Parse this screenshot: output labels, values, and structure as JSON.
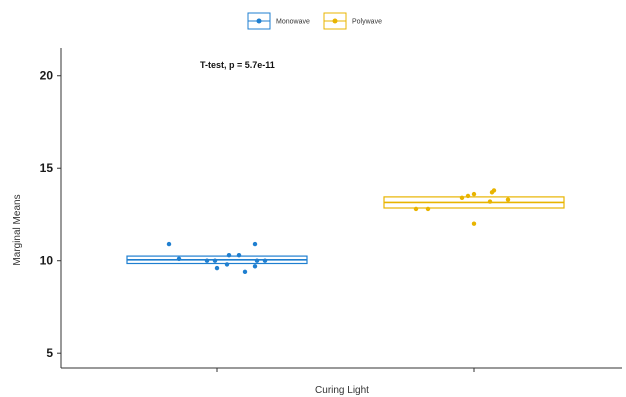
{
  "chart_data": {
    "type": "box",
    "title": "",
    "xlabel": "Curing Light",
    "ylabel": "Marginal Means",
    "ylim": [
      4.2,
      21.5
    ],
    "yticks": [
      5,
      10,
      15,
      20
    ],
    "grid": false,
    "legend_position": "top",
    "annotation": "T-test, p = 5.7e-11",
    "series": [
      {
        "name": "Monowave",
        "color": "#1f7fd0",
        "box": {
          "q1": 9.85,
          "median": 10.05,
          "q3": 10.25,
          "whisker_low": 9.85,
          "whisker_high": 10.25
        },
        "points": [
          10.9,
          10.1,
          10.0,
          10.0,
          9.6,
          9.8,
          10.3,
          10.3,
          10.0,
          9.4,
          9.7,
          10.9,
          10.0
        ]
      },
      {
        "name": "Polywave",
        "color": "#e8b400",
        "box": {
          "q1": 12.85,
          "median": 13.15,
          "q3": 13.45,
          "whisker_low": 12.85,
          "whisker_high": 13.45
        },
        "points": [
          12.8,
          12.8,
          13.4,
          13.5,
          13.6,
          12.0,
          13.2,
          13.7,
          13.8,
          13.3
        ]
      }
    ]
  }
}
